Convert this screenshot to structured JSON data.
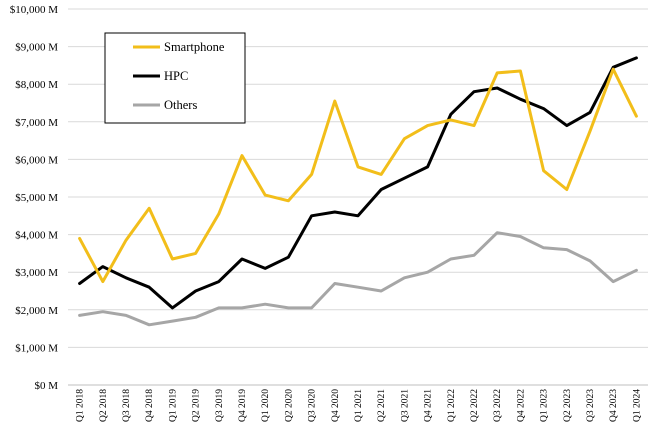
{
  "chart_data": {
    "type": "line",
    "title": "",
    "xlabel": "",
    "ylabel": "",
    "ylim": [
      0,
      10000
    ],
    "grid": true,
    "legend_position": "top-left",
    "y_ticks": [
      0,
      1000,
      2000,
      3000,
      4000,
      5000,
      6000,
      7000,
      8000,
      9000,
      10000
    ],
    "y_tick_labels": [
      "$0 M",
      "$1,000 M",
      "$2,000 M",
      "$3,000 M",
      "$4,000 M",
      "$5,000 M",
      "$6,000 M",
      "$7,000 M",
      "$8,000 M",
      "$9,000 M",
      "$10,000 M"
    ],
    "categories": [
      "Q1 2018",
      "Q2 2018",
      "Q3 2018",
      "Q4 2018",
      "Q1 2019",
      "Q2 2019",
      "Q3 2019",
      "Q4 2019",
      "Q1 2020",
      "Q2 2020",
      "Q3 2020",
      "Q4 2020",
      "Q1 2021",
      "Q2 2021",
      "Q3 2021",
      "Q4 2021",
      "Q1 2022",
      "Q2 2022",
      "Q3 2022",
      "Q4 2022",
      "Q1 2023",
      "Q2 2023",
      "Q3 2023",
      "Q4 2023",
      "Q1 2024"
    ],
    "series": [
      {
        "name": "Smartphone",
        "color": "#f2be1a",
        "values": [
          3900,
          2750,
          3850,
          4700,
          3350,
          3500,
          4550,
          6100,
          5050,
          4900,
          5600,
          7550,
          5800,
          5600,
          6550,
          6900,
          7050,
          6900,
          8300,
          8350,
          5700,
          5200,
          6750,
          8400,
          7150
        ]
      },
      {
        "name": "HPC",
        "color": "#000000",
        "values": [
          2700,
          3150,
          2850,
          2600,
          2050,
          2500,
          2750,
          3350,
          3100,
          3400,
          4500,
          4600,
          4500,
          5200,
          5500,
          5800,
          7200,
          7800,
          7900,
          7600,
          7350,
          6900,
          7250,
          8450,
          8700
        ]
      },
      {
        "name": "Others",
        "color": "#a6a6a6",
        "values": [
          1850,
          1950,
          1850,
          1600,
          1700,
          1800,
          2050,
          2050,
          2150,
          2050,
          2050,
          2700,
          2600,
          2500,
          2850,
          3000,
          3350,
          3450,
          4050,
          3950,
          3650,
          3600,
          3300,
          2750,
          3050
        ]
      }
    ]
  }
}
